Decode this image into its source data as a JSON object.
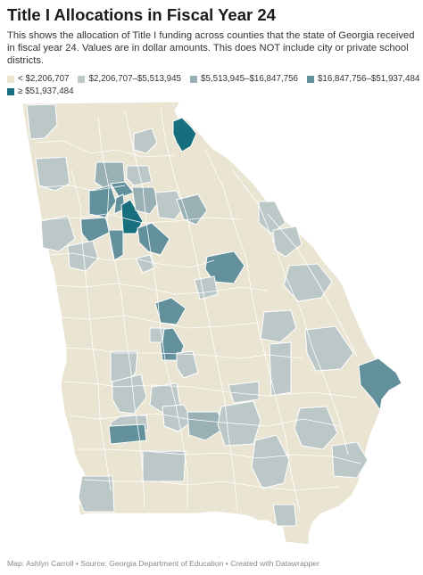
{
  "title": "Title I Allocations in Fiscal Year 24",
  "subtitle": "This shows the allocation of Title I funding across counties that the state of Georgia received in fiscal year 24. Values are in dollar amounts. This does NOT include city or private school districts.",
  "legend": [
    {
      "label": "< $2,206,707",
      "color": "#eae4d2"
    },
    {
      "label": "$2,206,707–$5,513,945",
      "color": "#bcc8c8"
    },
    {
      "label": "$5,513,945–$16,847,756",
      "color": "#99b0b5"
    },
    {
      "label": "$16,847,756–$51,937,484",
      "color": "#62909b"
    },
    {
      "label": "≥ $51,937,484",
      "color": "#176f7e"
    }
  ],
  "colors": {
    "border": "#ffffff",
    "background": "#ffffff"
  },
  "footer": "Map: Ashlyn Carroll • Source: Georgia Department of Education • Created with Datawrapper"
}
